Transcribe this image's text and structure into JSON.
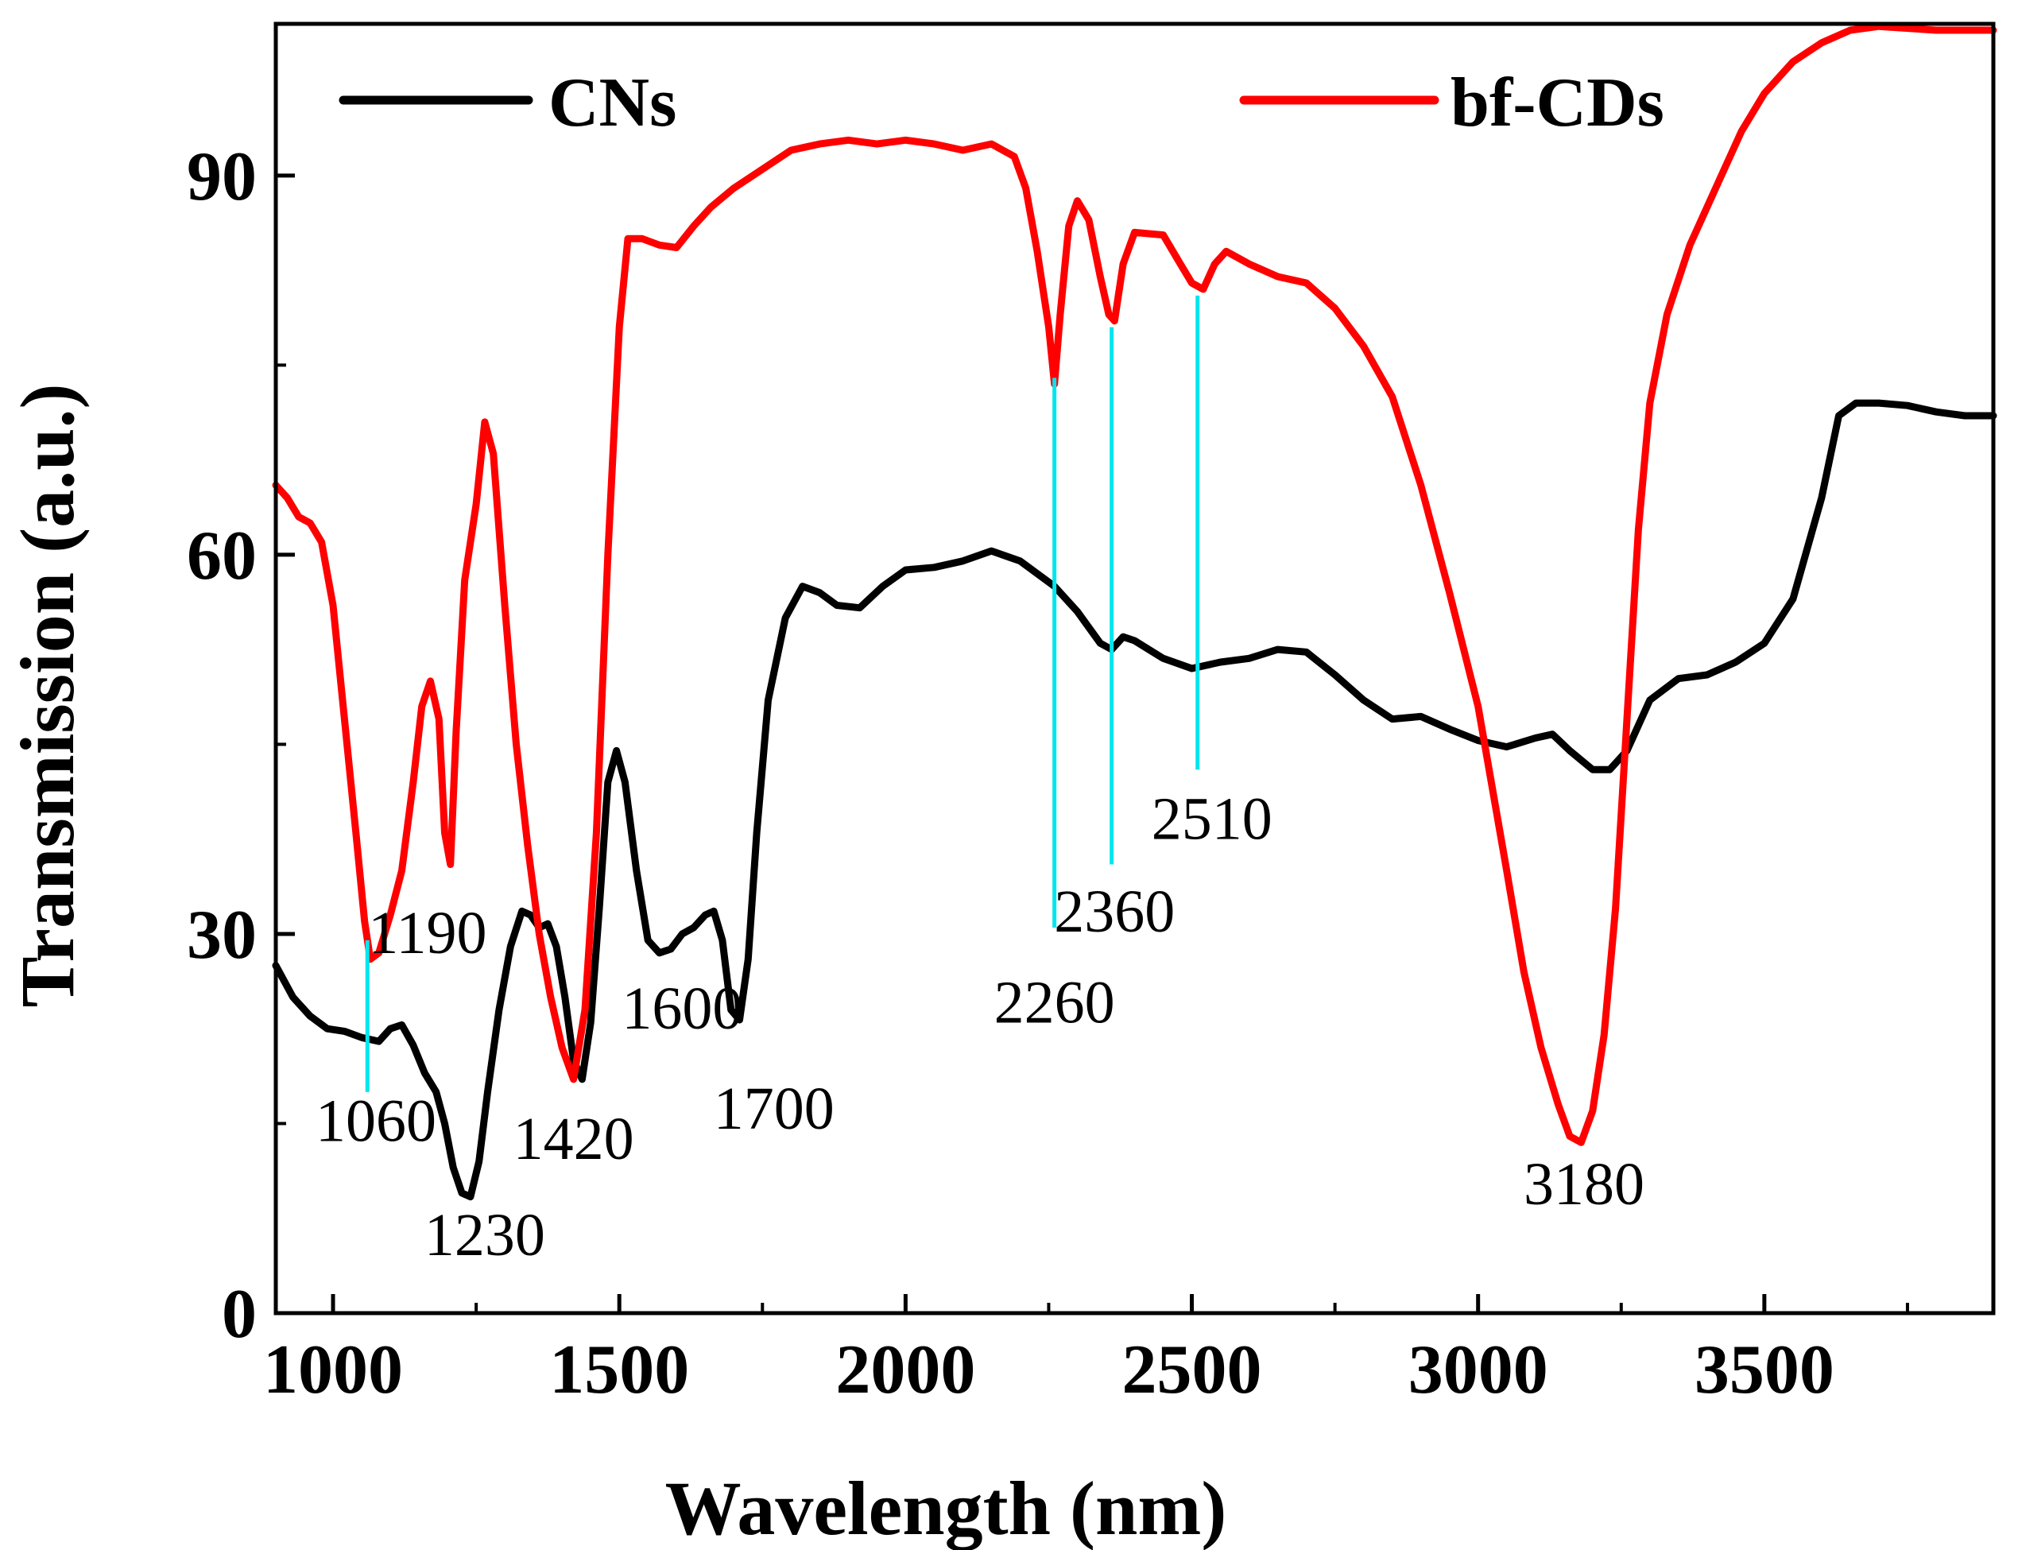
{
  "chart_data": {
    "type": "line",
    "xlabel": "Wavelength (nm)",
    "ylabel": "Transmission (a.u.)",
    "xlim": [
      900,
      3900
    ],
    "ylim": [
      0,
      102
    ],
    "xticks": [
      1000,
      1500,
      2000,
      2500,
      3000,
      3500
    ],
    "yticks": [
      0,
      30,
      60,
      90
    ],
    "x_minor_ticks": [
      1250,
      1750,
      2250,
      2750,
      3250,
      3750
    ],
    "y_minor_ticks": [
      15,
      45,
      75
    ],
    "grid": false,
    "legend_placement": "top",
    "series": [
      {
        "name": "CNs",
        "color": "#000000",
        "points": [
          [
            900,
            27.5
          ],
          [
            930,
            25
          ],
          [
            960,
            23.5
          ],
          [
            990,
            22.5
          ],
          [
            1020,
            22.3
          ],
          [
            1050,
            21.8
          ],
          [
            1080,
            21.5
          ],
          [
            1100,
            22.5
          ],
          [
            1120,
            22.8
          ],
          [
            1140,
            21.2
          ],
          [
            1160,
            19
          ],
          [
            1180,
            17.5
          ],
          [
            1195,
            15
          ],
          [
            1210,
            11.5
          ],
          [
            1225,
            9.5
          ],
          [
            1240,
            9.2
          ],
          [
            1255,
            12
          ],
          [
            1270,
            17.5
          ],
          [
            1290,
            24
          ],
          [
            1310,
            29
          ],
          [
            1330,
            31.8
          ],
          [
            1345,
            31.5
          ],
          [
            1360,
            30.5
          ],
          [
            1375,
            30.8
          ],
          [
            1390,
            29
          ],
          [
            1405,
            25
          ],
          [
            1420,
            20
          ],
          [
            1435,
            18.5
          ],
          [
            1450,
            23
          ],
          [
            1465,
            32
          ],
          [
            1480,
            42
          ],
          [
            1495,
            44.5
          ],
          [
            1510,
            42
          ],
          [
            1530,
            35
          ],
          [
            1550,
            29.5
          ],
          [
            1570,
            28.5
          ],
          [
            1590,
            28.8
          ],
          [
            1610,
            30
          ],
          [
            1630,
            30.5
          ],
          [
            1650,
            31.5
          ],
          [
            1665,
            31.8
          ],
          [
            1680,
            29.5
          ],
          [
            1695,
            24
          ],
          [
            1710,
            23.2
          ],
          [
            1725,
            28
          ],
          [
            1740,
            38
          ],
          [
            1760,
            48.5
          ],
          [
            1790,
            55
          ],
          [
            1820,
            57.5
          ],
          [
            1850,
            57
          ],
          [
            1880,
            56
          ],
          [
            1920,
            55.8
          ],
          [
            1960,
            57.5
          ],
          [
            2000,
            58.8
          ],
          [
            2050,
            59
          ],
          [
            2100,
            59.5
          ],
          [
            2150,
            60.3
          ],
          [
            2200,
            59.5
          ],
          [
            2260,
            57.5
          ],
          [
            2300,
            55.5
          ],
          [
            2340,
            53
          ],
          [
            2360,
            52.5
          ],
          [
            2380,
            53.5
          ],
          [
            2400,
            53.2
          ],
          [
            2450,
            51.8
          ],
          [
            2500,
            51
          ],
          [
            2550,
            51.5
          ],
          [
            2600,
            51.8
          ],
          [
            2650,
            52.5
          ],
          [
            2700,
            52.3
          ],
          [
            2750,
            50.5
          ],
          [
            2800,
            48.5
          ],
          [
            2850,
            47
          ],
          [
            2900,
            47.2
          ],
          [
            2950,
            46.2
          ],
          [
            3000,
            45.3
          ],
          [
            3050,
            44.8
          ],
          [
            3100,
            45.5
          ],
          [
            3130,
            45.8
          ],
          [
            3160,
            44.5
          ],
          [
            3200,
            43
          ],
          [
            3230,
            43
          ],
          [
            3260,
            44.5
          ],
          [
            3300,
            48.5
          ],
          [
            3350,
            50.2
          ],
          [
            3400,
            50.5
          ],
          [
            3450,
            51.5
          ],
          [
            3500,
            53
          ],
          [
            3550,
            56.5
          ],
          [
            3600,
            64.5
          ],
          [
            3630,
            71
          ],
          [
            3660,
            72
          ],
          [
            3700,
            72
          ],
          [
            3750,
            71.8
          ],
          [
            3800,
            71.3
          ],
          [
            3850,
            71
          ],
          [
            3900,
            71
          ]
        ]
      },
      {
        "name": "bf-CDs",
        "color": "#ff0000",
        "points": [
          [
            900,
            65.5
          ],
          [
            920,
            64.5
          ],
          [
            940,
            63
          ],
          [
            960,
            62.5
          ],
          [
            980,
            61
          ],
          [
            1000,
            56
          ],
          [
            1020,
            47
          ],
          [
            1040,
            38
          ],
          [
            1055,
            31
          ],
          [
            1065,
            28
          ],
          [
            1080,
            28.5
          ],
          [
            1100,
            31.5
          ],
          [
            1120,
            35
          ],
          [
            1140,
            42
          ],
          [
            1155,
            48
          ],
          [
            1170,
            50
          ],
          [
            1185,
            47
          ],
          [
            1195,
            38
          ],
          [
            1205,
            35.5
          ],
          [
            1215,
            46
          ],
          [
            1230,
            58
          ],
          [
            1250,
            64
          ],
          [
            1265,
            70.5
          ],
          [
            1280,
            68
          ],
          [
            1300,
            56
          ],
          [
            1320,
            45
          ],
          [
            1340,
            37
          ],
          [
            1360,
            30
          ],
          [
            1380,
            25
          ],
          [
            1400,
            21
          ],
          [
            1420,
            18.5
          ],
          [
            1440,
            24
          ],
          [
            1460,
            38
          ],
          [
            1480,
            60
          ],
          [
            1500,
            78
          ],
          [
            1515,
            85
          ],
          [
            1540,
            85
          ],
          [
            1570,
            84.5
          ],
          [
            1600,
            84.3
          ],
          [
            1630,
            86
          ],
          [
            1660,
            87.5
          ],
          [
            1700,
            89
          ],
          [
            1750,
            90.5
          ],
          [
            1800,
            92
          ],
          [
            1850,
            92.5
          ],
          [
            1900,
            92.8
          ],
          [
            1950,
            92.5
          ],
          [
            2000,
            92.8
          ],
          [
            2050,
            92.5
          ],
          [
            2100,
            92
          ],
          [
            2150,
            92.5
          ],
          [
            2190,
            91.5
          ],
          [
            2210,
            89
          ],
          [
            2230,
            84
          ],
          [
            2250,
            78
          ],
          [
            2260,
            73.5
          ],
          [
            2270,
            79
          ],
          [
            2285,
            86
          ],
          [
            2300,
            88
          ],
          [
            2320,
            86.5
          ],
          [
            2340,
            82
          ],
          [
            2355,
            79
          ],
          [
            2365,
            78.5
          ],
          [
            2380,
            83
          ],
          [
            2400,
            85.5
          ],
          [
            2450,
            85.3
          ],
          [
            2480,
            83
          ],
          [
            2500,
            81.5
          ],
          [
            2520,
            81
          ],
          [
            2540,
            83
          ],
          [
            2560,
            84
          ],
          [
            2600,
            83
          ],
          [
            2650,
            82
          ],
          [
            2700,
            81.5
          ],
          [
            2750,
            79.5
          ],
          [
            2800,
            76.5
          ],
          [
            2850,
            72.5
          ],
          [
            2900,
            65.5
          ],
          [
            2950,
            57
          ],
          [
            3000,
            48
          ],
          [
            3050,
            35
          ],
          [
            3080,
            27
          ],
          [
            3110,
            21
          ],
          [
            3140,
            16.5
          ],
          [
            3160,
            14
          ],
          [
            3180,
            13.5
          ],
          [
            3200,
            16
          ],
          [
            3220,
            22
          ],
          [
            3240,
            32
          ],
          [
            3260,
            47
          ],
          [
            3280,
            62
          ],
          [
            3300,
            72
          ],
          [
            3330,
            79
          ],
          [
            3370,
            84.5
          ],
          [
            3420,
            89.5
          ],
          [
            3460,
            93.5
          ],
          [
            3500,
            96.5
          ],
          [
            3550,
            99
          ],
          [
            3600,
            100.5
          ],
          [
            3650,
            101.5
          ],
          [
            3700,
            101.8
          ],
          [
            3800,
            101.5
          ],
          [
            3900,
            101.5
          ]
        ]
      }
    ],
    "annotations": [
      {
        "text": "1060",
        "x": 1060,
        "mark_y": [
          17.5,
          29.5
        ],
        "line_color": "#00e5ee",
        "tx": 1075,
        "ty": 13.6
      },
      {
        "text": "1190",
        "x": 1190,
        "tx": 1165,
        "ty": 28.5
      },
      {
        "text": "1230",
        "x": 1230,
        "tx": 1265,
        "ty": 4.6
      },
      {
        "text": "1420",
        "x": 1420,
        "tx": 1420,
        "ty": 12.2
      },
      {
        "text": "1600",
        "x": 1600,
        "tx": 1610,
        "ty": 22.5
      },
      {
        "text": "1700",
        "x": 1700,
        "tx": 1770,
        "ty": 14.6
      },
      {
        "text": "2260",
        "x": 2260,
        "mark_y": [
          30.5,
          74
        ],
        "line_color": "#00e5ee",
        "tx": 2260,
        "ty": 23
      },
      {
        "text": "2360",
        "x": 2360,
        "mark_y": [
          35.5,
          78
        ],
        "line_color": "#00e5ee",
        "tx": 2365,
        "ty": 30.2
      },
      {
        "text": "2510",
        "x": 2510,
        "mark_y": [
          43,
          80.5
        ],
        "line_color": "#00e5ee",
        "tx": 2535,
        "ty": 37.5
      },
      {
        "text": "3180",
        "x": 3180,
        "tx": 3185,
        "ty": 8.6
      }
    ]
  }
}
